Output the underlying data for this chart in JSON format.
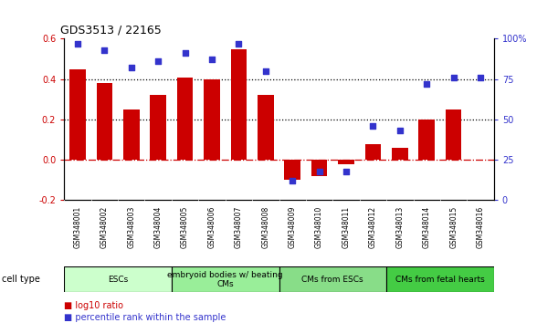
{
  "title": "GDS3513 / 22165",
  "samples": [
    "GSM348001",
    "GSM348002",
    "GSM348003",
    "GSM348004",
    "GSM348005",
    "GSM348006",
    "GSM348007",
    "GSM348008",
    "GSM348009",
    "GSM348010",
    "GSM348011",
    "GSM348012",
    "GSM348013",
    "GSM348014",
    "GSM348015",
    "GSM348016"
  ],
  "log10_ratio": [
    0.45,
    0.38,
    0.25,
    0.32,
    0.41,
    0.4,
    0.55,
    0.32,
    -0.1,
    -0.08,
    -0.02,
    0.08,
    0.06,
    0.2,
    0.25,
    0.0
  ],
  "percentile_rank": [
    97,
    93,
    82,
    86,
    91,
    87,
    97,
    80,
    12,
    18,
    18,
    46,
    43,
    72,
    76,
    76
  ],
  "ylim_left": [
    -0.2,
    0.6
  ],
  "ylim_right": [
    0,
    100
  ],
  "yticks_left": [
    -0.2,
    0.0,
    0.2,
    0.4,
    0.6
  ],
  "yticks_right": [
    0,
    25,
    50,
    75,
    100
  ],
  "ytick_labels_right": [
    "0",
    "25",
    "50",
    "75",
    "100%"
  ],
  "hlines": [
    0.2,
    0.4
  ],
  "bar_color": "#cc0000",
  "dot_color": "#3333cc",
  "zero_line_color": "#cc0000",
  "cell_type_groups": [
    {
      "label": "ESCs",
      "start": 0,
      "end": 3,
      "color": "#ccffcc"
    },
    {
      "label": "embryoid bodies w/ beating\nCMs",
      "start": 4,
      "end": 7,
      "color": "#99ee99"
    },
    {
      "label": "CMs from ESCs",
      "start": 8,
      "end": 11,
      "color": "#88dd88"
    },
    {
      "label": "CMs from fetal hearts",
      "start": 12,
      "end": 15,
      "color": "#44cc44"
    }
  ],
  "background_color": "#ffffff",
  "plot_bg": "#ffffff",
  "tick_label_bg": "#cccccc"
}
